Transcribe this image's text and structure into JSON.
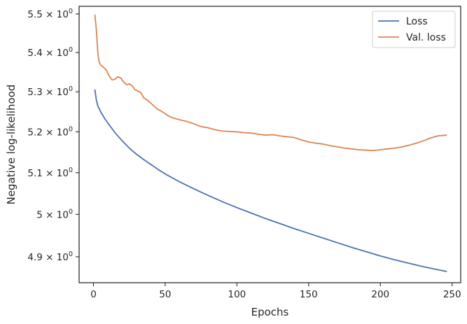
{
  "chart_data": {
    "type": "line",
    "xlabel": "Epochs",
    "ylabel": "Negative log-likelihood",
    "yscale": "log",
    "xlim": [
      -10,
      256
    ],
    "ylim": [
      4.84,
      5.52
    ],
    "x_ticks": [
      0,
      50,
      100,
      150,
      200,
      250
    ],
    "x_tick_labels": [
      "0",
      "50",
      "100",
      "150",
      "200",
      "250"
    ],
    "y_ticks": [
      {
        "value": 4.9,
        "mantissa": "4.9"
      },
      {
        "value": 5.0,
        "mantissa": "5"
      },
      {
        "value": 5.1,
        "mantissa": "5.1"
      },
      {
        "value": 5.2,
        "mantissa": "5.2"
      },
      {
        "value": 5.3,
        "mantissa": "5.3"
      },
      {
        "value": 5.4,
        "mantissa": "5.4"
      },
      {
        "value": 5.5,
        "mantissa": "5.5"
      }
    ],
    "y_tick_format": {
      "times": "×",
      "base": "10",
      "exponent": "0"
    },
    "grid": false,
    "legend": "top-right",
    "series": [
      {
        "name": "Loss",
        "color": "#4c72b0",
        "points": [
          [
            1,
            5.305
          ],
          [
            2,
            5.28
          ],
          [
            3,
            5.265
          ],
          [
            5,
            5.25
          ],
          [
            8,
            5.232
          ],
          [
            10,
            5.222
          ],
          [
            15,
            5.198
          ],
          [
            20,
            5.178
          ],
          [
            25,
            5.16
          ],
          [
            30,
            5.145
          ],
          [
            35,
            5.132
          ],
          [
            40,
            5.12
          ],
          [
            45,
            5.108
          ],
          [
            50,
            5.097
          ],
          [
            60,
            5.078
          ],
          [
            70,
            5.061
          ],
          [
            80,
            5.045
          ],
          [
            90,
            5.03
          ],
          [
            100,
            5.016
          ],
          [
            110,
            5.003
          ],
          [
            120,
            4.99
          ],
          [
            130,
            4.978
          ],
          [
            140,
            4.966
          ],
          [
            150,
            4.955
          ],
          [
            160,
            4.944
          ],
          [
            170,
            4.933
          ],
          [
            180,
            4.922
          ],
          [
            190,
            4.912
          ],
          [
            200,
            4.902
          ],
          [
            210,
            4.893
          ],
          [
            220,
            4.885
          ],
          [
            230,
            4.877
          ],
          [
            240,
            4.87
          ],
          [
            246,
            4.866
          ]
        ]
      },
      {
        "name": "Val. loss",
        "color": "#dd8452",
        "points": [
          [
            1,
            5.497
          ],
          [
            2,
            5.46
          ],
          [
            3,
            5.4
          ],
          [
            4,
            5.375
          ],
          [
            5,
            5.368
          ],
          [
            7,
            5.362
          ],
          [
            9,
            5.355
          ],
          [
            11,
            5.34
          ],
          [
            13,
            5.33
          ],
          [
            15,
            5.332
          ],
          [
            17,
            5.338
          ],
          [
            19,
            5.335
          ],
          [
            21,
            5.325
          ],
          [
            23,
            5.318
          ],
          [
            25,
            5.32
          ],
          [
            27,
            5.315
          ],
          [
            29,
            5.305
          ],
          [
            31,
            5.302
          ],
          [
            33,
            5.298
          ],
          [
            35,
            5.285
          ],
          [
            38,
            5.278
          ],
          [
            41,
            5.268
          ],
          [
            44,
            5.258
          ],
          [
            47,
            5.252
          ],
          [
            50,
            5.245
          ],
          [
            53,
            5.238
          ],
          [
            56,
            5.234
          ],
          [
            60,
            5.23
          ],
          [
            65,
            5.226
          ],
          [
            70,
            5.22
          ],
          [
            75,
            5.213
          ],
          [
            80,
            5.21
          ],
          [
            85,
            5.205
          ],
          [
            90,
            5.202
          ],
          [
            95,
            5.201
          ],
          [
            100,
            5.2
          ],
          [
            105,
            5.198
          ],
          [
            110,
            5.197
          ],
          [
            115,
            5.194
          ],
          [
            120,
            5.192
          ],
          [
            125,
            5.193
          ],
          [
            130,
            5.19
          ],
          [
            135,
            5.188
          ],
          [
            140,
            5.186
          ],
          [
            145,
            5.18
          ],
          [
            150,
            5.175
          ],
          [
            155,
            5.172
          ],
          [
            160,
            5.17
          ],
          [
            165,
            5.166
          ],
          [
            170,
            5.163
          ],
          [
            175,
            5.16
          ],
          [
            180,
            5.158
          ],
          [
            185,
            5.156
          ],
          [
            190,
            5.155
          ],
          [
            195,
            5.154
          ],
          [
            200,
            5.156
          ],
          [
            205,
            5.158
          ],
          [
            210,
            5.16
          ],
          [
            215,
            5.163
          ],
          [
            220,
            5.167
          ],
          [
            225,
            5.172
          ],
          [
            230,
            5.178
          ],
          [
            235,
            5.185
          ],
          [
            240,
            5.19
          ],
          [
            246,
            5.192
          ]
        ]
      }
    ]
  }
}
